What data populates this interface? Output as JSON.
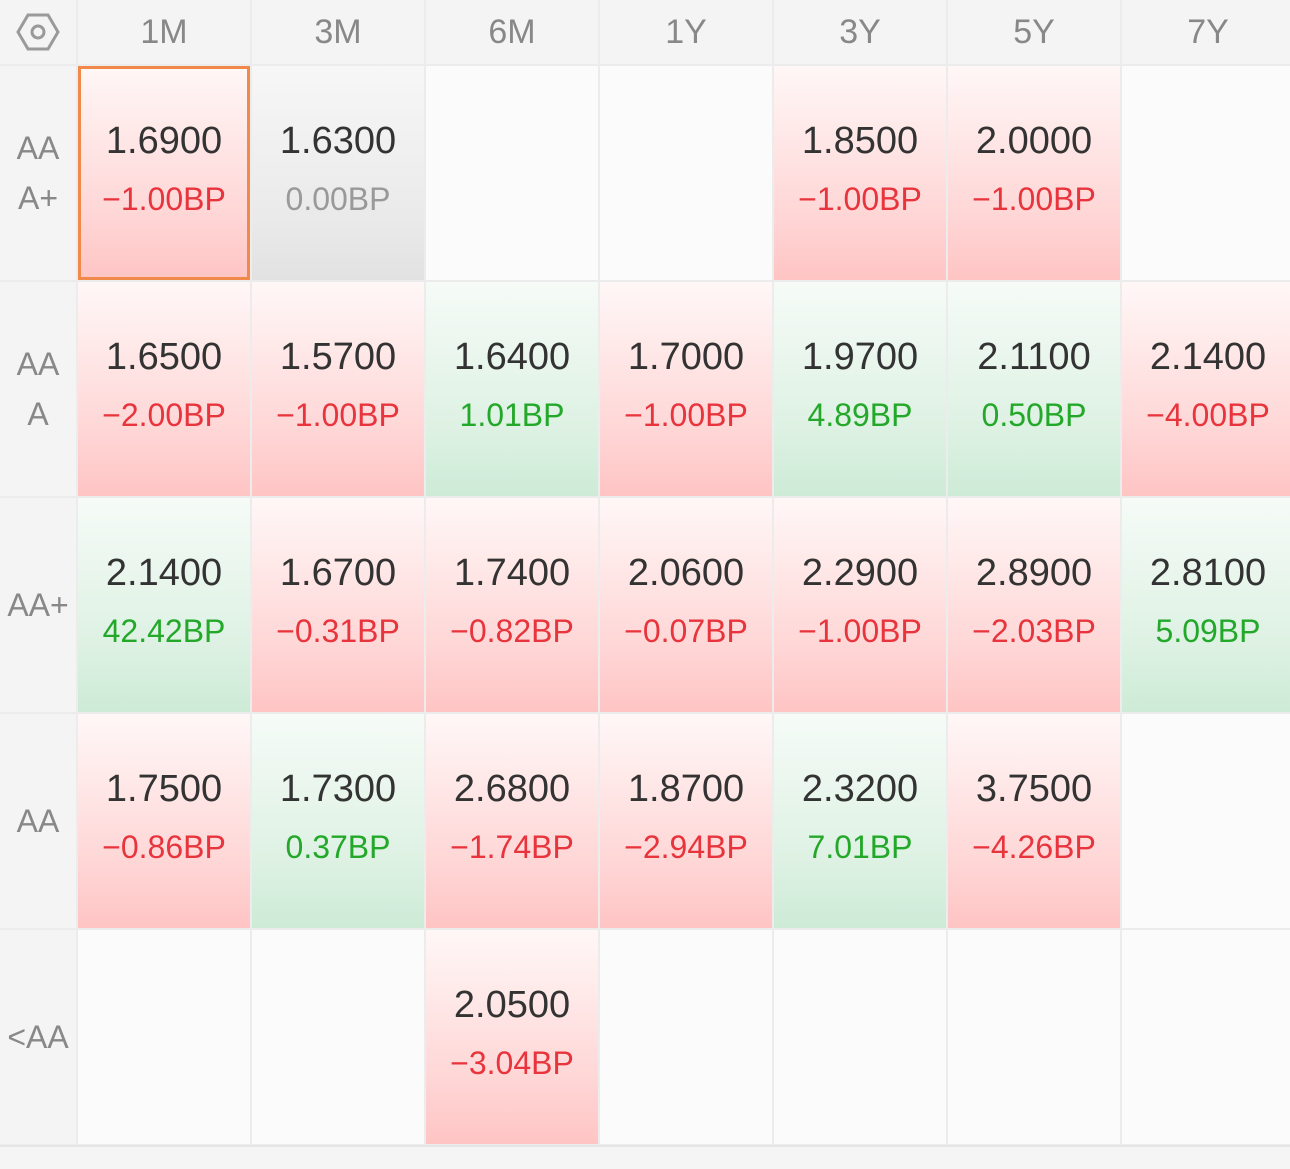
{
  "columns": [
    "1M",
    "3M",
    "6M",
    "1Y",
    "3Y",
    "5Y",
    "7Y"
  ],
  "corner_icon": "hexagon-settings-icon",
  "colors": {
    "negative": "#e8343c",
    "positive": "#24a82a",
    "neutral": "#999999",
    "selected_border": "#f0894a"
  },
  "rows": [
    {
      "label": "AAA+",
      "cells": [
        {
          "value": "1.6900",
          "change": "−1.00BP",
          "trend": "neg",
          "selected": true
        },
        {
          "value": "1.6300",
          "change": "0.00BP",
          "trend": "zero"
        },
        null,
        null,
        {
          "value": "1.8500",
          "change": "−1.00BP",
          "trend": "neg"
        },
        {
          "value": "2.0000",
          "change": "−1.00BP",
          "trend": "neg"
        },
        null
      ]
    },
    {
      "label": "AAA",
      "cells": [
        {
          "value": "1.6500",
          "change": "−2.00BP",
          "trend": "neg"
        },
        {
          "value": "1.5700",
          "change": "−1.00BP",
          "trend": "neg"
        },
        {
          "value": "1.6400",
          "change": "1.01BP",
          "trend": "pos"
        },
        {
          "value": "1.7000",
          "change": "−1.00BP",
          "trend": "neg"
        },
        {
          "value": "1.9700",
          "change": "4.89BP",
          "trend": "pos"
        },
        {
          "value": "2.1100",
          "change": "0.50BP",
          "trend": "pos"
        },
        {
          "value": "2.1400",
          "change": "−4.00BP",
          "trend": "neg"
        }
      ]
    },
    {
      "label": "AA+",
      "cells": [
        {
          "value": "2.1400",
          "change": "42.42BP",
          "trend": "pos"
        },
        {
          "value": "1.6700",
          "change": "−0.31BP",
          "trend": "neg"
        },
        {
          "value": "1.7400",
          "change": "−0.82BP",
          "trend": "neg"
        },
        {
          "value": "2.0600",
          "change": "−0.07BP",
          "trend": "neg"
        },
        {
          "value": "2.2900",
          "change": "−1.00BP",
          "trend": "neg"
        },
        {
          "value": "2.8900",
          "change": "−2.03BP",
          "trend": "neg"
        },
        {
          "value": "2.8100",
          "change": "5.09BP",
          "trend": "pos"
        }
      ]
    },
    {
      "label": "AA",
      "cells": [
        {
          "value": "1.7500",
          "change": "−0.86BP",
          "trend": "neg"
        },
        {
          "value": "1.7300",
          "change": "0.37BP",
          "trend": "pos"
        },
        {
          "value": "2.6800",
          "change": "−1.74BP",
          "trend": "neg"
        },
        {
          "value": "1.8700",
          "change": "−2.94BP",
          "trend": "neg"
        },
        {
          "value": "2.3200",
          "change": "7.01BP",
          "trend": "pos"
        },
        {
          "value": "3.7500",
          "change": "−4.26BP",
          "trend": "neg"
        },
        null
      ]
    },
    {
      "label": "<AA",
      "cells": [
        null,
        null,
        {
          "value": "2.0500",
          "change": "−3.04BP",
          "trend": "neg"
        },
        null,
        null,
        null,
        null
      ]
    }
  ]
}
